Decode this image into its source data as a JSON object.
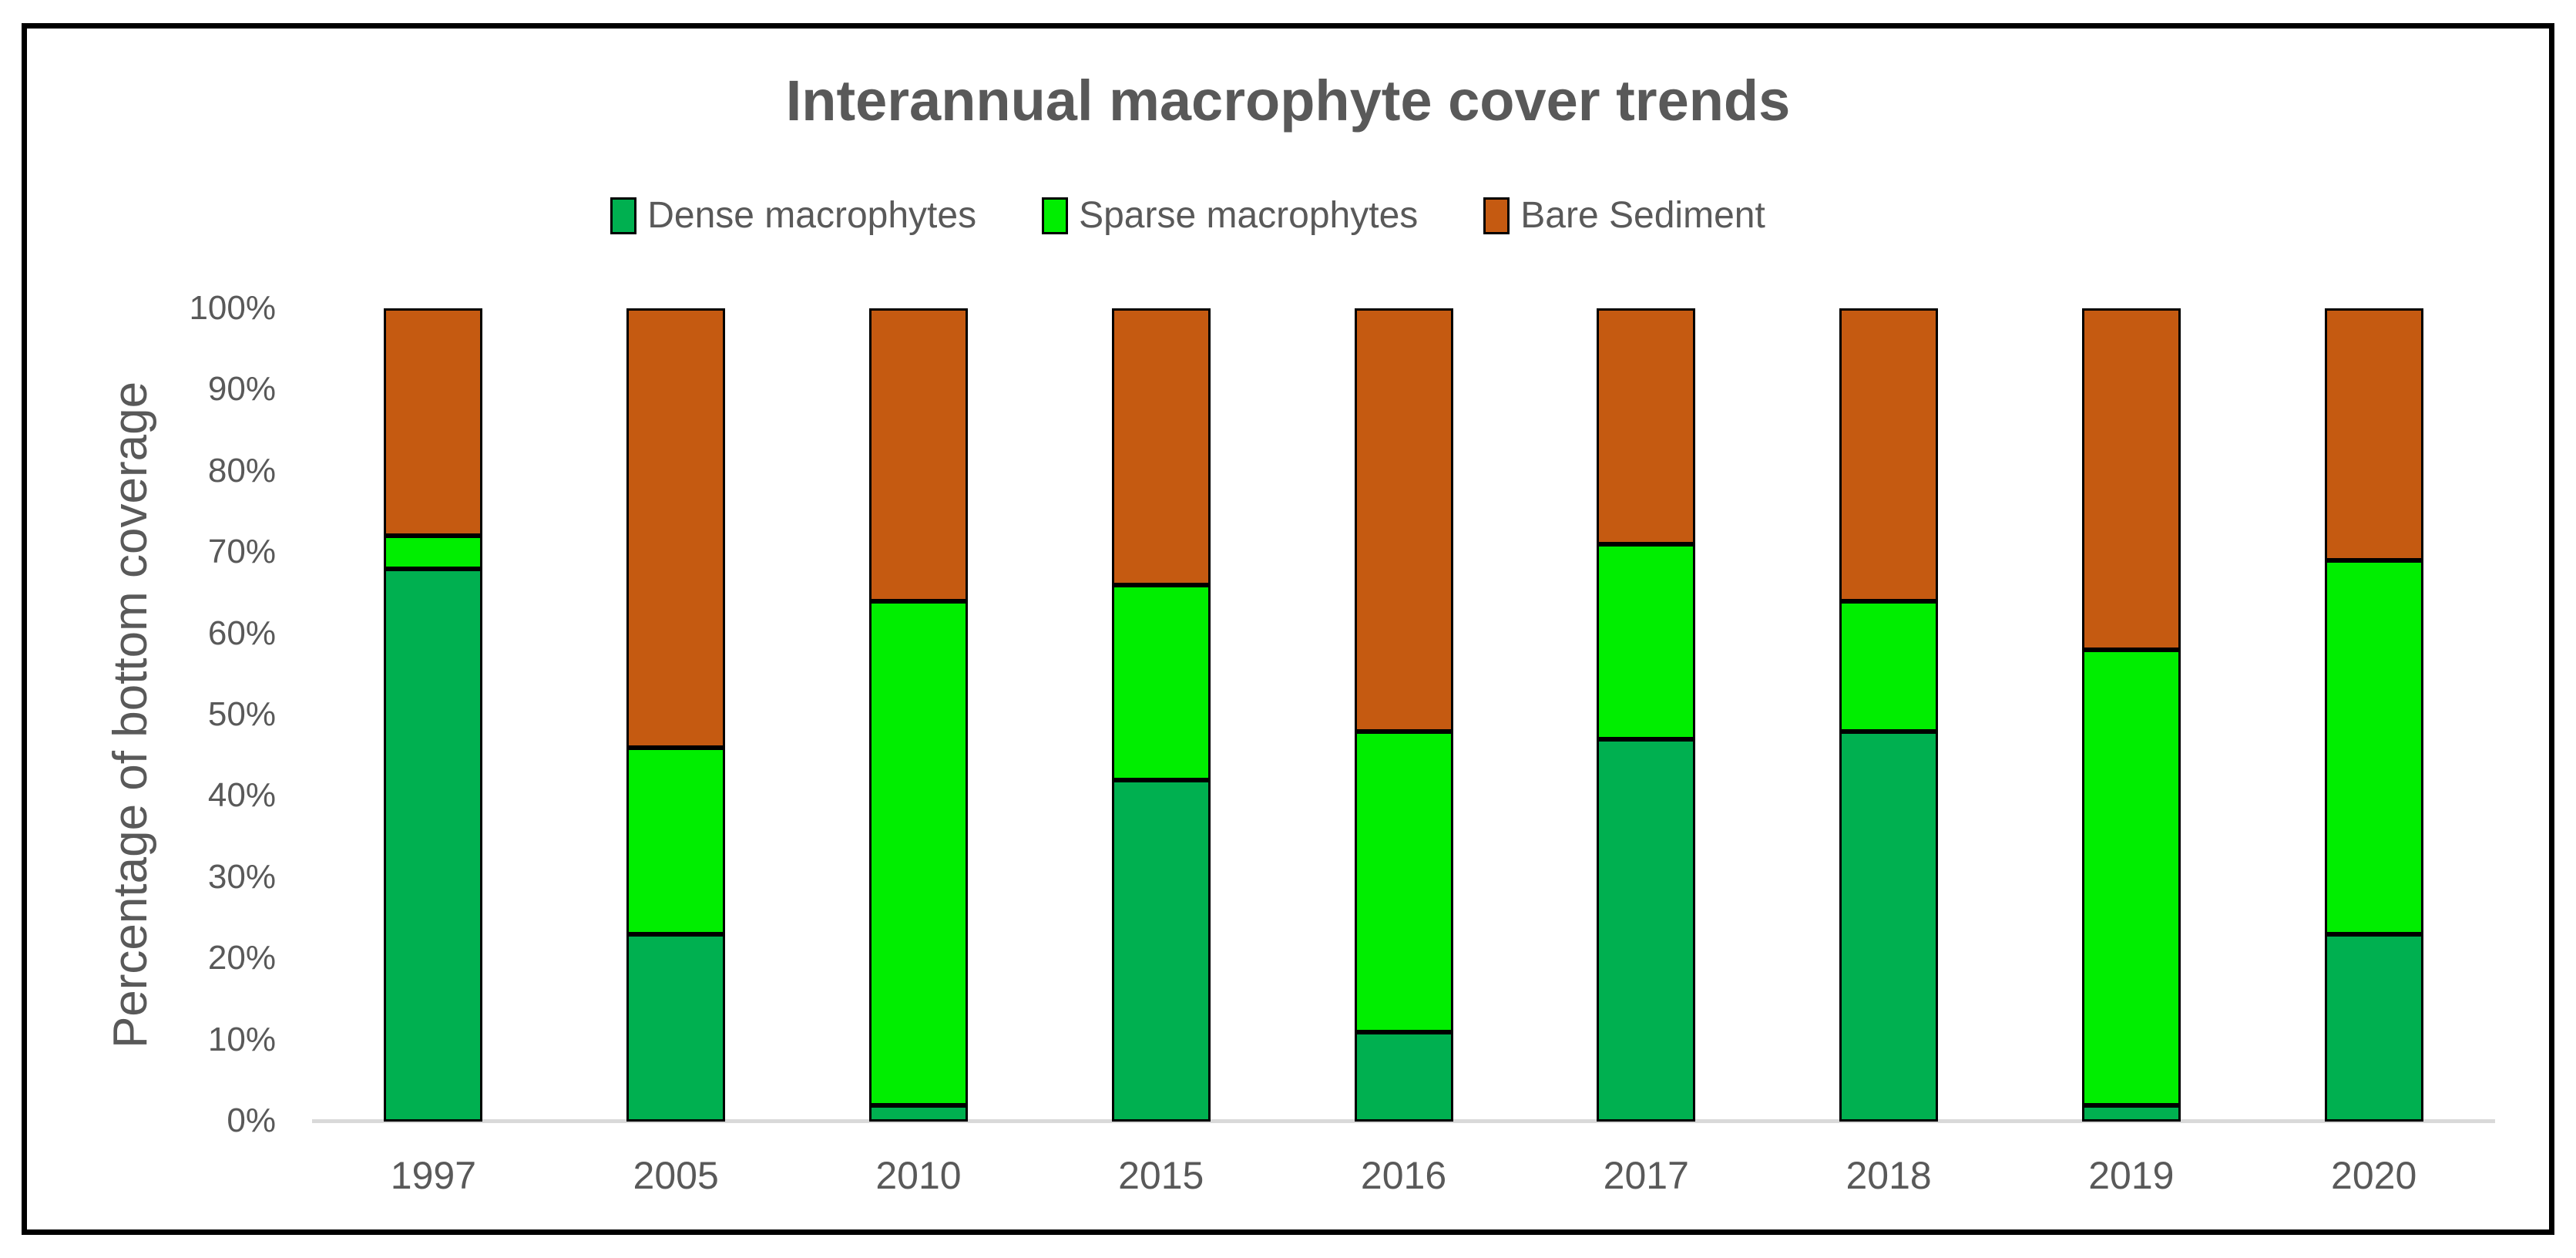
{
  "chart_data": {
    "type": "bar",
    "stacked": true,
    "title": "Interannual macrophyte cover trends",
    "xlabel": "",
    "ylabel": "Percentage of bottom coverage",
    "ylim": [
      0,
      100
    ],
    "grid": false,
    "legend_position": "top",
    "y_ticks": [
      "100%",
      "90%",
      "80%",
      "70%",
      "60%",
      "50%",
      "40%",
      "30%",
      "20%",
      "10%",
      "0%"
    ],
    "categories": [
      "1997",
      "2005",
      "2010",
      "2015",
      "2016",
      "2017",
      "2018",
      "2019",
      "2020"
    ],
    "series": [
      {
        "name": "Dense macrophytes",
        "color": "#00B050",
        "values": [
          68,
          23,
          2,
          42,
          11,
          47,
          48,
          2,
          23
        ]
      },
      {
        "name": "Sparse macrophytes",
        "color": "#00EE00",
        "values": [
          4,
          23,
          62,
          24,
          37,
          24,
          16,
          56,
          46
        ]
      },
      {
        "name": "Bare Sediment",
        "color": "#C55A11",
        "values": [
          28,
          54,
          36,
          34,
          52,
          29,
          36,
          42,
          31
        ]
      }
    ],
    "colors": {
      "text": "#595959",
      "axis_line": "#D9D9D9",
      "bar_border": "#000000",
      "frame_border": "#000000",
      "background": "#FFFFFF"
    }
  }
}
